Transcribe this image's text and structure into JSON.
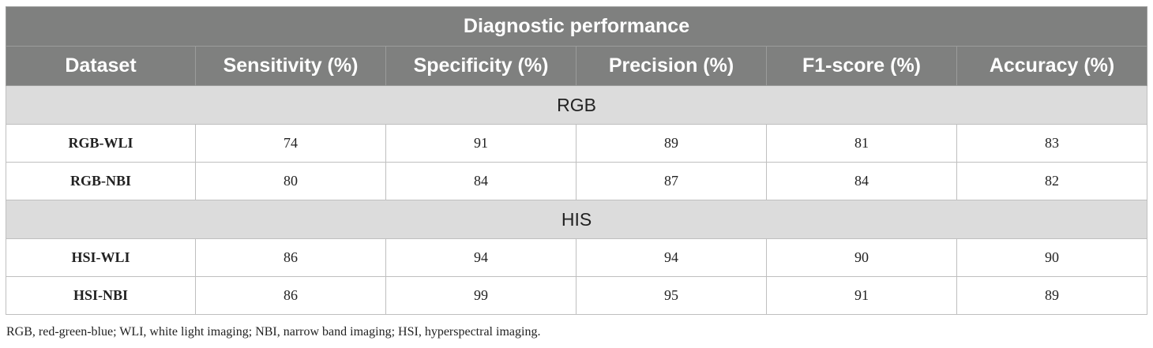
{
  "table": {
    "title": "Diagnostic performance",
    "columns": [
      "Dataset",
      "Sensitivity (%)",
      "Specificity (%)",
      "Precision (%)",
      "F1-score (%)",
      "Accuracy (%)"
    ],
    "groups": [
      {
        "label": "RGB",
        "rows": [
          {
            "dataset": "RGB-WLI",
            "values": [
              "74",
              "91",
              "89",
              "81",
              "83"
            ]
          },
          {
            "dataset": "RGB-NBI",
            "values": [
              "80",
              "84",
              "87",
              "84",
              "82"
            ]
          }
        ]
      },
      {
        "label": "HIS",
        "rows": [
          {
            "dataset": "HSI-WLI",
            "values": [
              "86",
              "94",
              "94",
              "90",
              "90"
            ]
          },
          {
            "dataset": "HSI-NBI",
            "values": [
              "86",
              "99",
              "95",
              "91",
              "89"
            ]
          }
        ]
      }
    ]
  },
  "footnote": "RGB, red-green-blue; WLI, white light imaging; NBI, narrow band imaging; HSI, hyperspectral imaging.",
  "colors": {
    "header_bg": "#7f807f",
    "group_bg": "#dcdcdc",
    "border": "#bfbfbf"
  }
}
